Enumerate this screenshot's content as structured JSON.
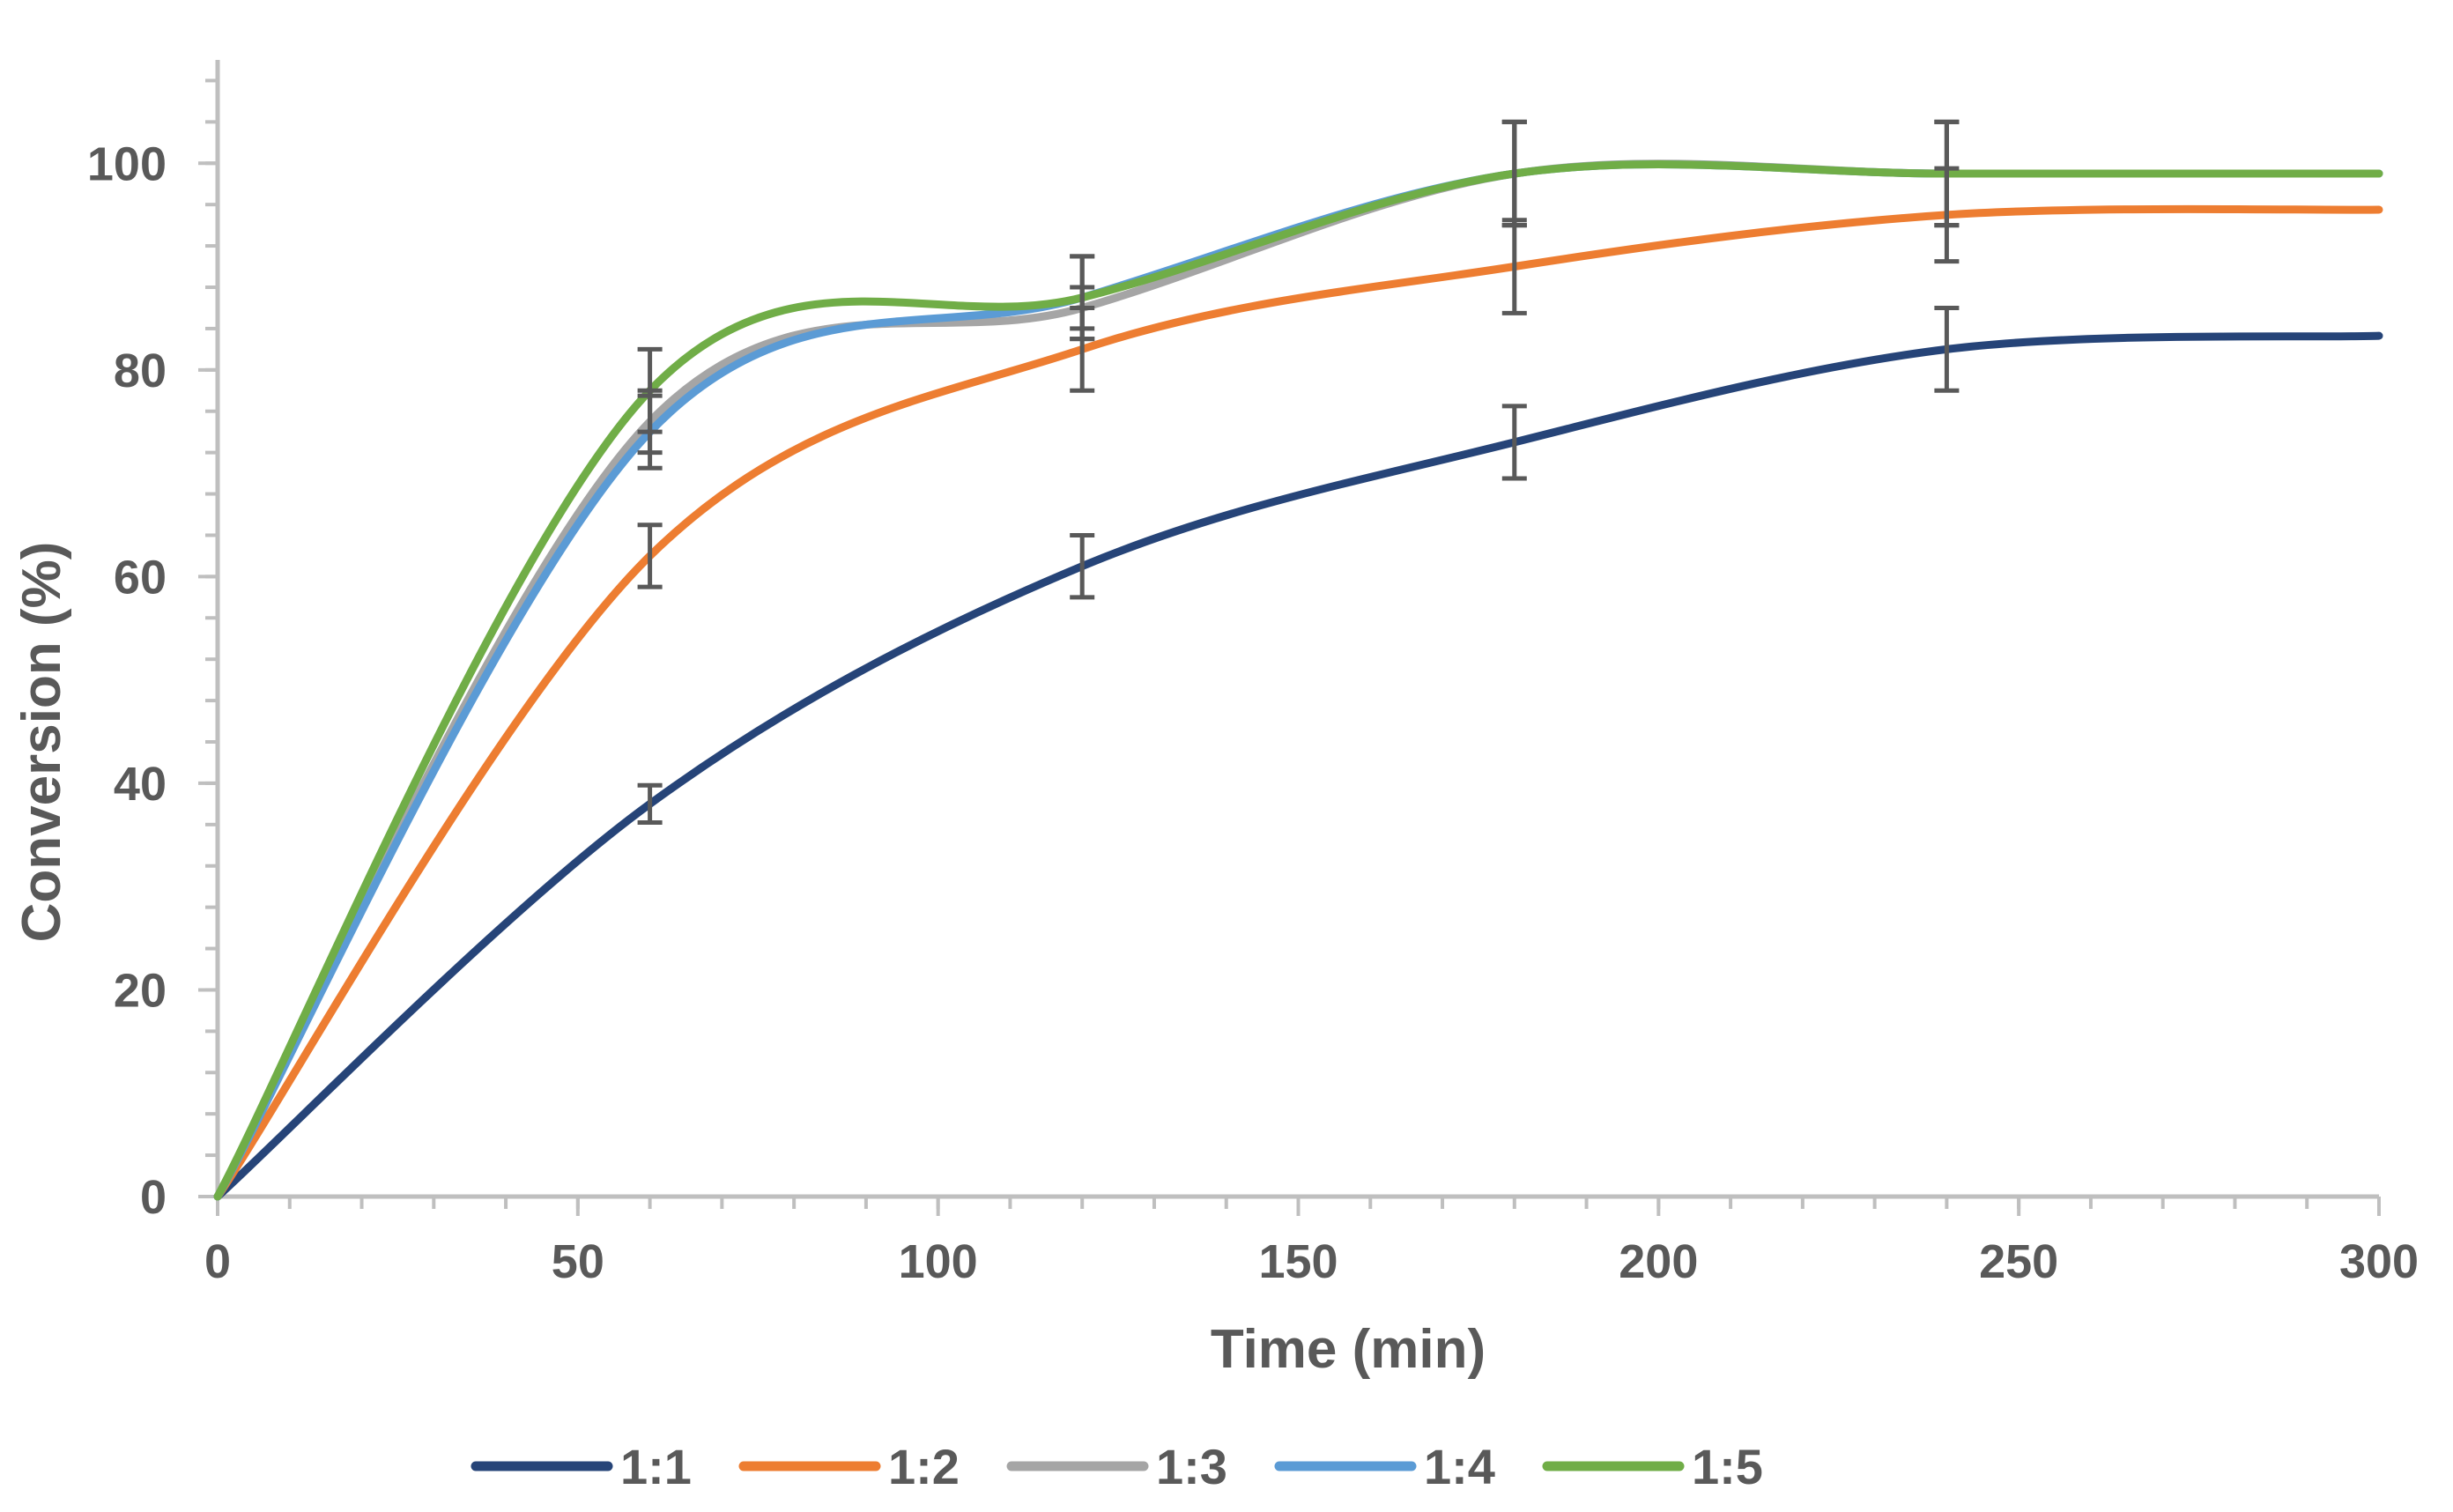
{
  "chart_data": {
    "type": "line",
    "title": "",
    "xlabel": "Time (min)",
    "ylabel": "Conversion (%)",
    "xlim": [
      0,
      300
    ],
    "ylim": [
      0,
      110
    ],
    "x_ticks": [
      0,
      50,
      100,
      150,
      200,
      250,
      300
    ],
    "x_tick_labels": [
      "0",
      "50",
      "100",
      "150",
      "200",
      "250",
      "300"
    ],
    "y_ticks": [
      0,
      20,
      40,
      60,
      80,
      100
    ],
    "y_tick_labels": [
      "0",
      "20",
      "40",
      "60",
      "80",
      "100"
    ],
    "x_minor_step": 10,
    "y_minor_step": 4,
    "grid": false,
    "legend_position": "bottom",
    "x": [
      0,
      60,
      120,
      180,
      240,
      300
    ],
    "series": [
      {
        "name": "1:1",
        "color": "#264478",
        "values": [
          0,
          38,
          61,
          73,
          82,
          83.3
        ],
        "errors": [
          0,
          1.8,
          3,
          3.5,
          4,
          null
        ]
      },
      {
        "name": "1:2",
        "color": "#ED7D31",
        "values": [
          0,
          62,
          82,
          90,
          95,
          95.5
        ],
        "errors": [
          0,
          3,
          4,
          4.5,
          4.5,
          null
        ]
      },
      {
        "name": "1:3",
        "color": "#A5A5A5",
        "values": [
          0,
          75,
          86,
          99,
          99,
          99
        ],
        "errors": [
          0,
          3,
          2,
          5,
          5,
          null
        ]
      },
      {
        "name": "1:4",
        "color": "#5B9BD5",
        "values": [
          0,
          74,
          87,
          99,
          99,
          99
        ],
        "errors": [
          0,
          3.5,
          4,
          5,
          5,
          null
        ]
      },
      {
        "name": "1:5",
        "color": "#70AD47",
        "values": [
          0,
          78,
          87,
          99,
          99,
          99
        ],
        "errors": [
          0,
          4,
          4,
          5,
          5,
          null
        ]
      }
    ]
  }
}
